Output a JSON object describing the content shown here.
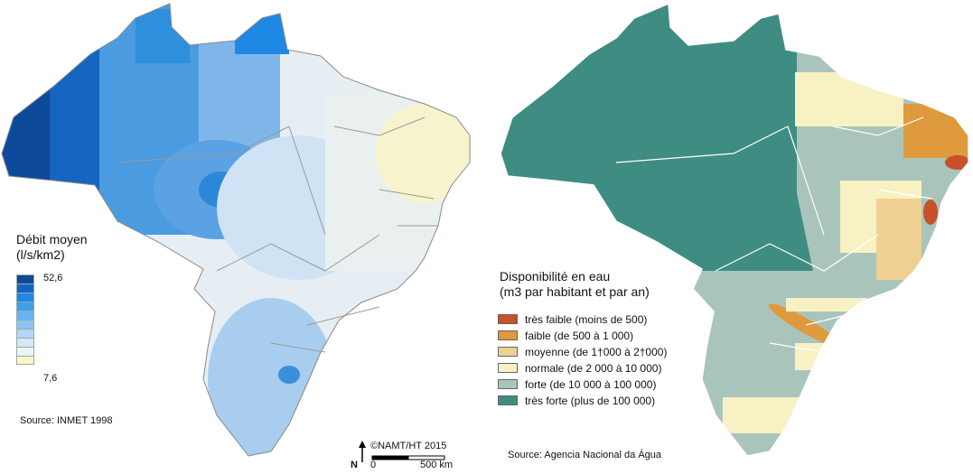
{
  "left_map": {
    "legend_title_line1": "Débit moyen",
    "legend_title_line2": "(l/s/km2)",
    "legend_max": "52,6",
    "legend_min": "7,6",
    "ramp_colors": [
      "#0d4a9a",
      "#1565c0",
      "#1e88e5",
      "#3ea0e8",
      "#64b5f6",
      "#8cc4f0",
      "#b3d7f5",
      "#d6e8f7",
      "#eef3f4",
      "#fbf6c8"
    ],
    "source": "Source: INMET 1998"
  },
  "right_map": {
    "legend_title_line1": "Disponibilité en eau",
    "legend_title_line2": "(m3 par habitant et par an)",
    "categories": [
      {
        "label": "très faible (moins de 500)",
        "color": "#c8502a"
      },
      {
        "label": "faible (de 500 à 1 000)",
        "color": "#de9a3c"
      },
      {
        "label": "moyenne (de 1†000 à 2†000)",
        "color": "#efcf92"
      },
      {
        "label": "normale (de 2 000 à 10 000)",
        "color": "#f7f1c4"
      },
      {
        "label": "forte (de 10 000 à 100 000)",
        "color": "#a9c5bb"
      },
      {
        "label": "très forte (plus de 100 000)",
        "color": "#3f8c83"
      }
    ],
    "source": "Source: Agencia Nacional da Água"
  },
  "credits": {
    "copyright": "©NAMT/HT 2015",
    "north": "N",
    "scale_zero": "0",
    "scale_end": "500 km"
  }
}
